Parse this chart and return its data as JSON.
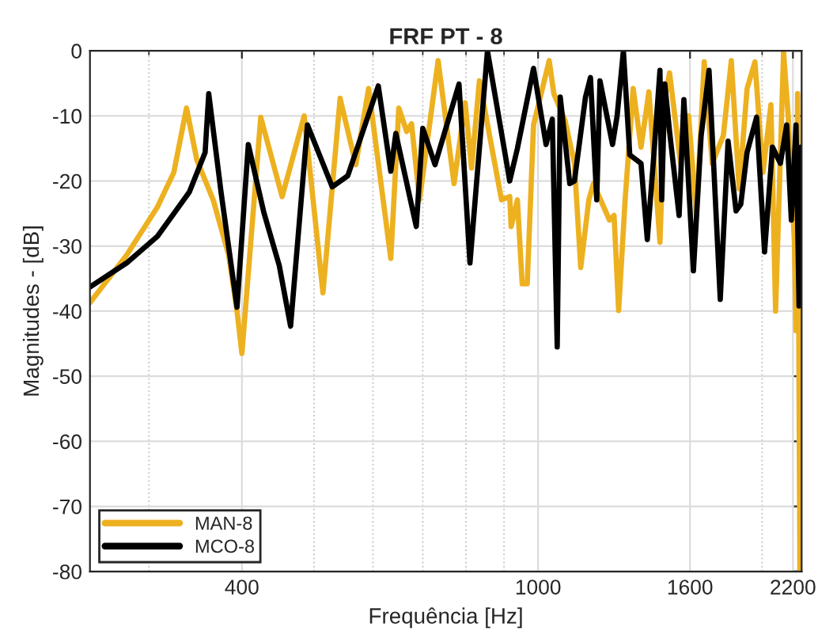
{
  "chart_data": {
    "type": "line",
    "title": "FRF PT - 8",
    "xlabel": "Frequência [Hz]",
    "ylabel": "Magnitudes - [dB]",
    "log": "x",
    "xlim": [
      250,
      2260
    ],
    "ylim": [
      -80,
      0
    ],
    "xticks": [
      {
        "value": 300,
        "label": null
      },
      400,
      {
        "value": 500,
        "label": null
      },
      {
        "value": 600,
        "label": null
      },
      {
        "value": 700,
        "label": null
      },
      {
        "value": 800,
        "label": null
      },
      {
        "value": 900,
        "label": null
      },
      1000,
      1600,
      {
        "value": 2000,
        "label": null
      },
      2200
    ],
    "yticks": [
      -80,
      -70,
      -60,
      -50,
      -40,
      -30,
      -20,
      -10,
      0
    ],
    "grid": true,
    "legend": "bottom left",
    "line_style": "solid",
    "marker": "none",
    "series": [
      {
        "name": "MAN-8",
        "color": "#edb120",
        "x": [
          250,
          280,
          308,
          324,
          337,
          348,
          366,
          384,
          394,
          400,
          424,
          453,
          485,
          514,
          542,
          569,
          592,
          634,
          650,
          666,
          676,
          693,
          734,
          771,
          798,
          814,
          834,
          893,
          916,
          920,
          938,
          952,
          967,
          986,
          1035,
          1050,
          1087,
          1119,
          1141,
          1170,
          1187,
          1247,
          1265,
          1283,
          1309,
          1342,
          1375,
          1409,
          1458,
          1480,
          1502,
          1554,
          1593,
          1632,
          1672,
          1714,
          1774,
          1818,
          1863,
          1909,
          1956,
          2005,
          2055,
          2085,
          2137,
          2168,
          2210,
          2221,
          2232,
          2248
        ],
        "values": [
          -38.7,
          -31.4,
          -24,
          -18.7,
          -8.8,
          -16.8,
          -22.9,
          -31.4,
          -40,
          -46.5,
          -10.2,
          -22.4,
          -10,
          -37.2,
          -7.3,
          -17.5,
          -5.8,
          -31.9,
          -8.8,
          -12.4,
          -11.2,
          -22.9,
          -1.5,
          -20.4,
          -8,
          -18,
          -4.6,
          -22.9,
          -22.4,
          -27,
          -22.9,
          -35.8,
          -35.8,
          -11.4,
          -1.5,
          -6.6,
          -10.7,
          -17.3,
          -33.3,
          -22.9,
          -20.4,
          -26,
          -25.3,
          -39.9,
          -22.9,
          -5.8,
          -14.8,
          -6.3,
          -29.4,
          -7.5,
          -3.4,
          -17.3,
          -10,
          -25.3,
          -1.7,
          -17.3,
          -13,
          -1.5,
          -21.2,
          -5.8,
          -1.7,
          -18.7,
          -8.3,
          -40,
          -0.2,
          -10,
          -29.4,
          -43,
          -6.6,
          -80
        ]
      },
      {
        "name": "MCO-8",
        "color": "#000000",
        "x": [
          250,
          280,
          308,
          340,
          357,
          361,
          375,
          394,
          408,
          428,
          449,
          465,
          490,
          529,
          555,
          610,
          634,
          644,
          686,
          700,
          727,
          783,
          810,
          855,
          916,
          938,
          986,
          1025,
          1045,
          1061,
          1071,
          1103,
          1119,
          1158,
          1176,
          1199,
          1211,
          1259,
          1277,
          1302,
          1328,
          1375,
          1402,
          1430,
          1458,
          1466,
          1480,
          1502,
          1547,
          1570,
          1617,
          1656,
          1697,
          1757,
          1800,
          1845,
          1872,
          1909,
          1966,
          2015,
          2065,
          2116,
          2158,
          2189,
          2221,
          2242,
          2255
        ],
        "values": [
          -36.3,
          -32.6,
          -28.5,
          -21.7,
          -15.6,
          -6.6,
          -21.7,
          -39.4,
          -14.4,
          -24.8,
          -33,
          -42.3,
          -11.4,
          -20.9,
          -19.2,
          -5.4,
          -18.5,
          -12.7,
          -27,
          -11.9,
          -17.5,
          -5.1,
          -32.6,
          0,
          -20,
          -15,
          -2.7,
          -14.4,
          -10.5,
          -45.5,
          -7.1,
          -20.4,
          -20,
          -7.1,
          -4.1,
          -22.9,
          -4.6,
          -14.4,
          -10,
          0,
          -16,
          -17.3,
          -29,
          -16.3,
          -3,
          -22.9,
          -5.1,
          -12.4,
          -25.3,
          -7.5,
          -33.8,
          -13.1,
          -3,
          -38.2,
          -13.9,
          -24.6,
          -23.6,
          -15.6,
          -10.2,
          -30.9,
          -14.8,
          -17.3,
          -11.4,
          -26,
          -11.4,
          -39.2,
          -14.8
        ]
      }
    ]
  }
}
